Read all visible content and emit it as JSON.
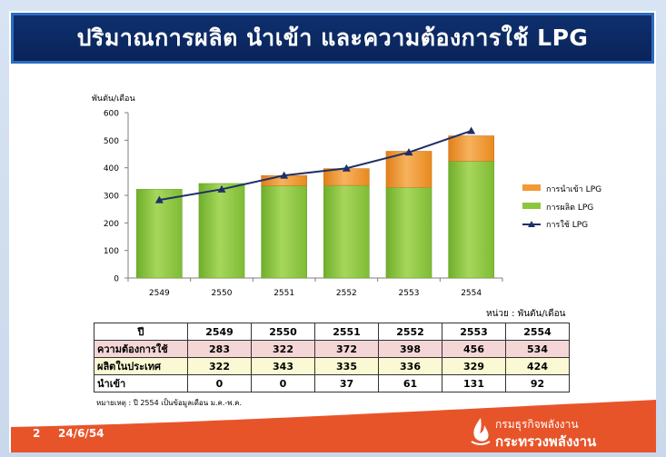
{
  "title": "ปริมาณการผลิต นำเข้า และความต้องการใช้ LPG",
  "chart_data": {
    "type": "bar",
    "stacked": true,
    "ylabel": "พันตัน/เดือน",
    "ylim": [
      0,
      600
    ],
    "yticks": [
      0,
      100,
      200,
      300,
      400,
      500,
      600
    ],
    "categories": [
      "2549",
      "2550",
      "2551",
      "2552",
      "2553",
      "2554"
    ],
    "series": [
      {
        "name": "การนำเข้า LPG",
        "type": "bar",
        "color": "#f39a33",
        "values": [
          0,
          0,
          37,
          61,
          131,
          92
        ]
      },
      {
        "name": "การผลิต LPG",
        "type": "bar",
        "color": "#8cc63f",
        "values": [
          322,
          343,
          335,
          336,
          329,
          424
        ]
      },
      {
        "name": "การใช้ LPG",
        "type": "line",
        "color": "#1f2f66",
        "values": [
          283,
          322,
          372,
          398,
          456,
          534
        ]
      }
    ],
    "legend_position": "right",
    "grid": false
  },
  "unit_note": "หน่วย : พันตัน/เดือน",
  "table": {
    "header_label": "ปี",
    "years": [
      "2549",
      "2550",
      "2551",
      "2552",
      "2553",
      "2554"
    ],
    "rows": [
      {
        "label": "ความต้องการใช้",
        "values": [
          "283",
          "322",
          "372",
          "398",
          "456",
          "534"
        ]
      },
      {
        "label": "ผลิตในประเทศ",
        "values": [
          "322",
          "343",
          "335",
          "336",
          "329",
          "424"
        ]
      },
      {
        "label": "นำเข้า",
        "values": [
          "0",
          "0",
          "37",
          "61",
          "131",
          "92"
        ]
      }
    ]
  },
  "footnote": "หมายเหตุ : ปี 2554 เป็นข้อมูลเดือน ม.ค.-พ.ค.",
  "footer": {
    "page_number": "2",
    "date": "24/6/54",
    "org_name": "กรมธุรกิจพลังงาน",
    "ministry": "กระทรวงพลังงาน"
  },
  "colors": {
    "title_bg": "#0b2a63",
    "footer_band": "#e8542a",
    "import_bar": "#f39a33",
    "production_bar": "#8cc63f",
    "usage_line": "#1f2f66"
  }
}
